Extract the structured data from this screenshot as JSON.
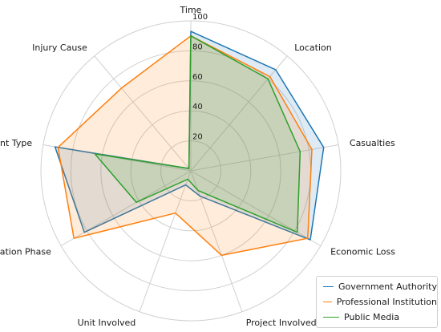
{
  "chart_data": {
    "type": "radar",
    "categories": [
      "Time",
      "Location",
      "Casualties",
      "Economic Loss",
      "Project Involved",
      "Unit Involved",
      "Operation Phase",
      "Accident Type",
      "Injury Cause"
    ],
    "rlim": [
      0,
      100
    ],
    "rticks": [
      20,
      40,
      60,
      80,
      100
    ],
    "grid": true,
    "legend_position": "bottom-right",
    "series": [
      {
        "name": "Government Authority",
        "color": "#1f77b4",
        "values": [
          93,
          88,
          90,
          92,
          18,
          10,
          82,
          92,
          2
        ]
      },
      {
        "name": "Professional Institution",
        "color": "#ff7f0e",
        "values": [
          90,
          82,
          82,
          90,
          60,
          30,
          90,
          90,
          72
        ]
      },
      {
        "name": "Public Media",
        "color": "#2ca02c",
        "values": [
          90,
          80,
          74,
          82,
          14,
          6,
          42,
          65,
          2
        ]
      }
    ]
  }
}
